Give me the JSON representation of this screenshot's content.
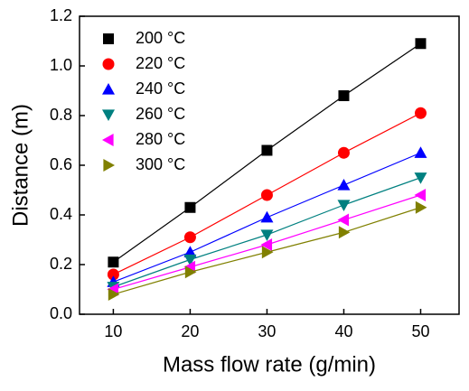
{
  "chart_data": {
    "type": "line",
    "x_label": "Mass flow rate (g/min)",
    "y_label": "Distance (m)",
    "x": [
      10,
      20,
      30,
      40,
      50
    ],
    "series": [
      {
        "name": "200 °C",
        "color": "#000000",
        "marker": "square",
        "values": [
          0.21,
          0.43,
          0.66,
          0.88,
          1.09
        ]
      },
      {
        "name": "220 °C",
        "color": "#ff0000",
        "marker": "circle",
        "values": [
          0.16,
          0.31,
          0.48,
          0.65,
          0.81
        ]
      },
      {
        "name": "240 °C",
        "color": "#0000ff",
        "marker": "triangle-up",
        "values": [
          0.13,
          0.25,
          0.39,
          0.52,
          0.65
        ]
      },
      {
        "name": "260 °C",
        "color": "#008080",
        "marker": "triangle-down",
        "values": [
          0.11,
          0.22,
          0.32,
          0.44,
          0.55
        ]
      },
      {
        "name": "280 °C",
        "color": "#ff00ff",
        "marker": "triangle-left",
        "values": [
          0.1,
          0.19,
          0.28,
          0.38,
          0.48
        ]
      },
      {
        "name": "300 °C",
        "color": "#808000",
        "marker": "triangle-right",
        "values": [
          0.08,
          0.17,
          0.25,
          0.33,
          0.43
        ]
      }
    ],
    "xlim": [
      5.6,
      55
    ],
    "xticks": [
      10,
      20,
      30,
      40,
      50
    ],
    "ylim": [
      0,
      1.2
    ],
    "yticks": [
      {
        "value": 0,
        "label": "0.0"
      },
      0.2,
      0.4,
      0.6,
      0.8,
      {
        "value": 1,
        "label": "1.0"
      },
      1.2
    ],
    "legend": "upper-left"
  }
}
